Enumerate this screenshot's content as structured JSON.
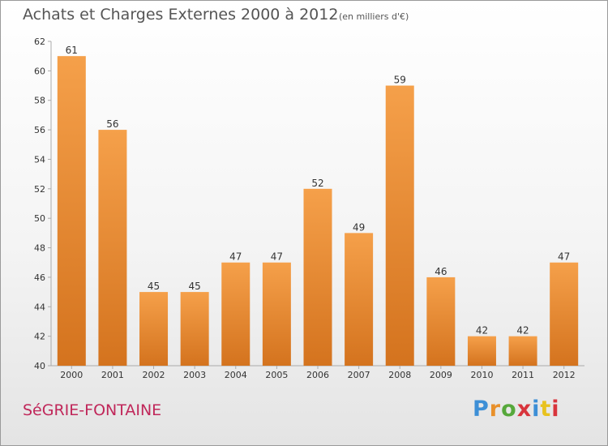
{
  "header": {
    "title": "Achats et Charges Externes 2000 à 2012",
    "unit": "(en milliers d'€)"
  },
  "commune": "SéGRIE-FONTAINE",
  "logo": {
    "letters": [
      "P",
      "r",
      "o",
      "x",
      "i",
      "t",
      "i"
    ]
  },
  "colors": {
    "bar_light": "#f5a04a",
    "bar_dark": "#d4731e",
    "commune_text": "#c0275a",
    "axis": "#aaaaaa"
  },
  "chart_data": {
    "type": "bar",
    "title": "Achats et Charges Externes 2000 à 2012",
    "subtitle": "(en milliers d'€)",
    "categories": [
      "2000",
      "2001",
      "2002",
      "2003",
      "2004",
      "2005",
      "2006",
      "2007",
      "2008",
      "2009",
      "2010",
      "2011",
      "2012"
    ],
    "values": [
      61,
      56,
      45,
      45,
      47,
      47,
      52,
      49,
      59,
      46,
      42,
      42,
      47
    ],
    "ylim": [
      40,
      62
    ],
    "yticks": [
      40,
      42,
      44,
      46,
      48,
      50,
      52,
      54,
      56,
      58,
      60,
      62
    ],
    "grid": false,
    "data_labels": true
  }
}
